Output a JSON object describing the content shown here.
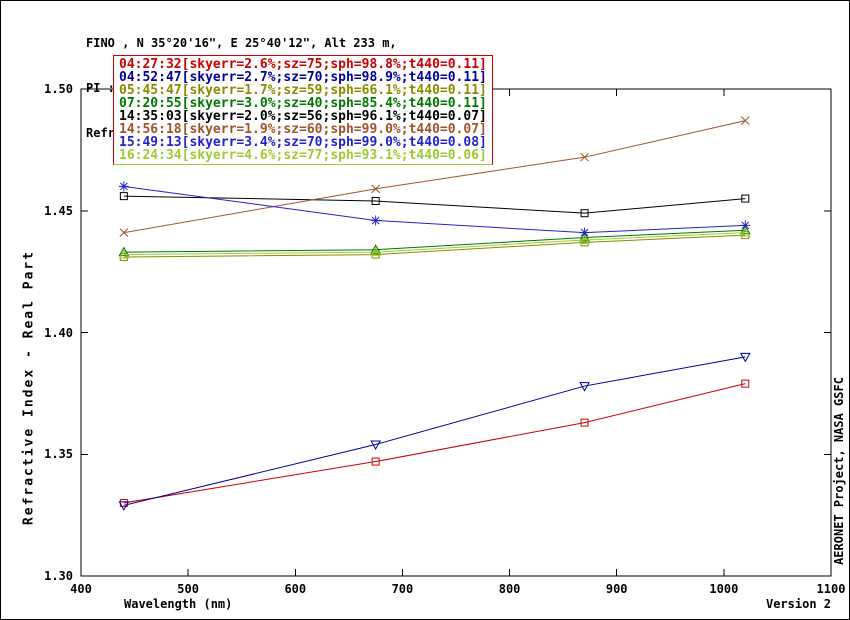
{
  "header": {
    "line1": "FINO , N 35°20'16\", E 25°40'12\", Alt 233 m,",
    "line2": "PI : Brent Holben, Brent.N.Holben@nasa.gov",
    "line3": "Refractive Index Almucantar Level 1.5; 21 JUN 2014"
  },
  "side_text": "AERONET Project, NASA GSFC",
  "footer": {
    "version": "Version 2"
  },
  "legend": {
    "border_colors": {
      "top": "#cc0000",
      "sides": "#cc0000",
      "bottom": "#9acd32"
    }
  },
  "chart_data": {
    "type": "line",
    "title": "Refractive Index Almucantar Level 1.5; 21 JUN 2014",
    "xlabel": "Wavelength (nm)",
    "ylabel": "Refractive Index - Real Part",
    "xlim": [
      400,
      1100
    ],
    "ylim": [
      1.3,
      1.5
    ],
    "xticks": [
      400,
      500,
      600,
      700,
      800,
      900,
      1000,
      1100
    ],
    "yticks": [
      1.3,
      1.35,
      1.4,
      1.45,
      1.5
    ],
    "grid": false,
    "legend_position": "top-left-inside",
    "x": [
      440,
      675,
      870,
      1020
    ],
    "series": [
      {
        "label": "04:27:32[skyerr=2.6%;sz=75;sph=98.8%;t440=0.11]",
        "color": "#cc0000",
        "marker": "square",
        "values": [
          1.33,
          1.347,
          1.363,
          1.379
        ]
      },
      {
        "label": "04:52:47[skyerr=2.7%;sz=70;sph=98.9%;t440=0.11]",
        "color": "#000099",
        "marker": "triangle-down",
        "values": [
          1.329,
          1.354,
          1.378,
          1.39
        ]
      },
      {
        "label": "05:45:47[skyerr=1.7%;sz=59;sph=66.1%;t440=0.11]",
        "color": "#8b8b00",
        "marker": "square",
        "values": [
          1.431,
          1.432,
          1.437,
          1.44
        ]
      },
      {
        "label": "07:20:55[skyerr=3.0%;sz=40;sph=85.4%;t440=0.11]",
        "color": "#007700",
        "marker": "triangle-up",
        "values": [
          1.433,
          1.434,
          1.439,
          1.442
        ]
      },
      {
        "label": "14:35:03[skyerr=2.0%;sz=56;sph=96.1%;t440=0.07]",
        "color": "#000000",
        "marker": "square",
        "values": [
          1.456,
          1.454,
          1.449,
          1.455
        ]
      },
      {
        "label": "14:56:18[skyerr=1.9%;sz=60;sph=99.0%;t440=0.07]",
        "color": "#a0522d",
        "marker": "x",
        "values": [
          1.441,
          1.459,
          1.472,
          1.487
        ]
      },
      {
        "label": "15:49:13[skyerr=3.4%;sz=70;sph=99.0%;t440=0.08]",
        "color": "#2222cc",
        "marker": "star",
        "values": [
          1.46,
          1.446,
          1.441,
          1.444
        ]
      },
      {
        "label": "16:24:34[skyerr=4.6%;sz=77;sph=93.1%;t440=0.06]",
        "color": "#9acd32",
        "marker": "triangle-up",
        "values": [
          1.432,
          1.433,
          1.438,
          1.441
        ]
      }
    ]
  }
}
